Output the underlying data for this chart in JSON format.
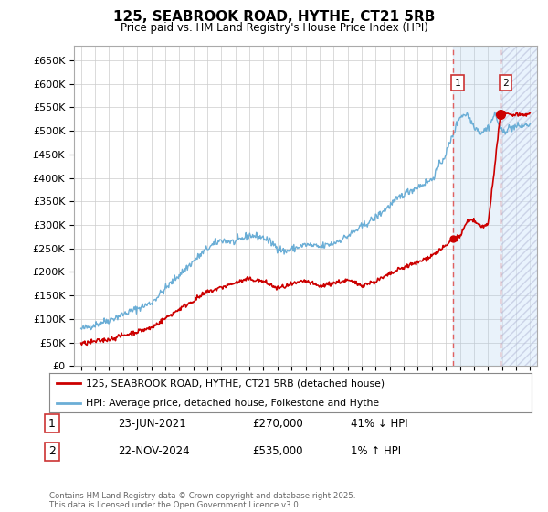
{
  "title": "125, SEABROOK ROAD, HYTHE, CT21 5RB",
  "subtitle": "Price paid vs. HM Land Registry's House Price Index (HPI)",
  "ylim": [
    0,
    680000
  ],
  "yticks": [
    0,
    50000,
    100000,
    150000,
    200000,
    250000,
    300000,
    350000,
    400000,
    450000,
    500000,
    550000,
    600000,
    650000
  ],
  "ytick_labels": [
    "£0",
    "£50K",
    "£100K",
    "£150K",
    "£200K",
    "£250K",
    "£300K",
    "£350K",
    "£400K",
    "£450K",
    "£500K",
    "£550K",
    "£600K",
    "£650K"
  ],
  "hpi_color": "#6baed6",
  "price_color": "#cc0000",
  "vline_color": "#e06060",
  "fill_color": "#ddeeff",
  "marker1_date": 2021.48,
  "marker1_price": 270000,
  "marker2_date": 2024.9,
  "marker2_price": 535000,
  "legend_label1": "125, SEABROOK ROAD, HYTHE, CT21 5RB (detached house)",
  "legend_label2": "HPI: Average price, detached house, Folkestone and Hythe",
  "note1_num": "1",
  "note1_date": "23-JUN-2021",
  "note1_price": "£270,000",
  "note1_hpi": "41% ↓ HPI",
  "note2_num": "2",
  "note2_date": "22-NOV-2024",
  "note2_price": "£535,000",
  "note2_hpi": "1% ↑ HPI",
  "footer": "Contains HM Land Registry data © Crown copyright and database right 2025.\nThis data is licensed under the Open Government Licence v3.0.",
  "bg_color": "#ffffff",
  "plot_bg_color": "#ffffff",
  "grid_color": "#cccccc"
}
